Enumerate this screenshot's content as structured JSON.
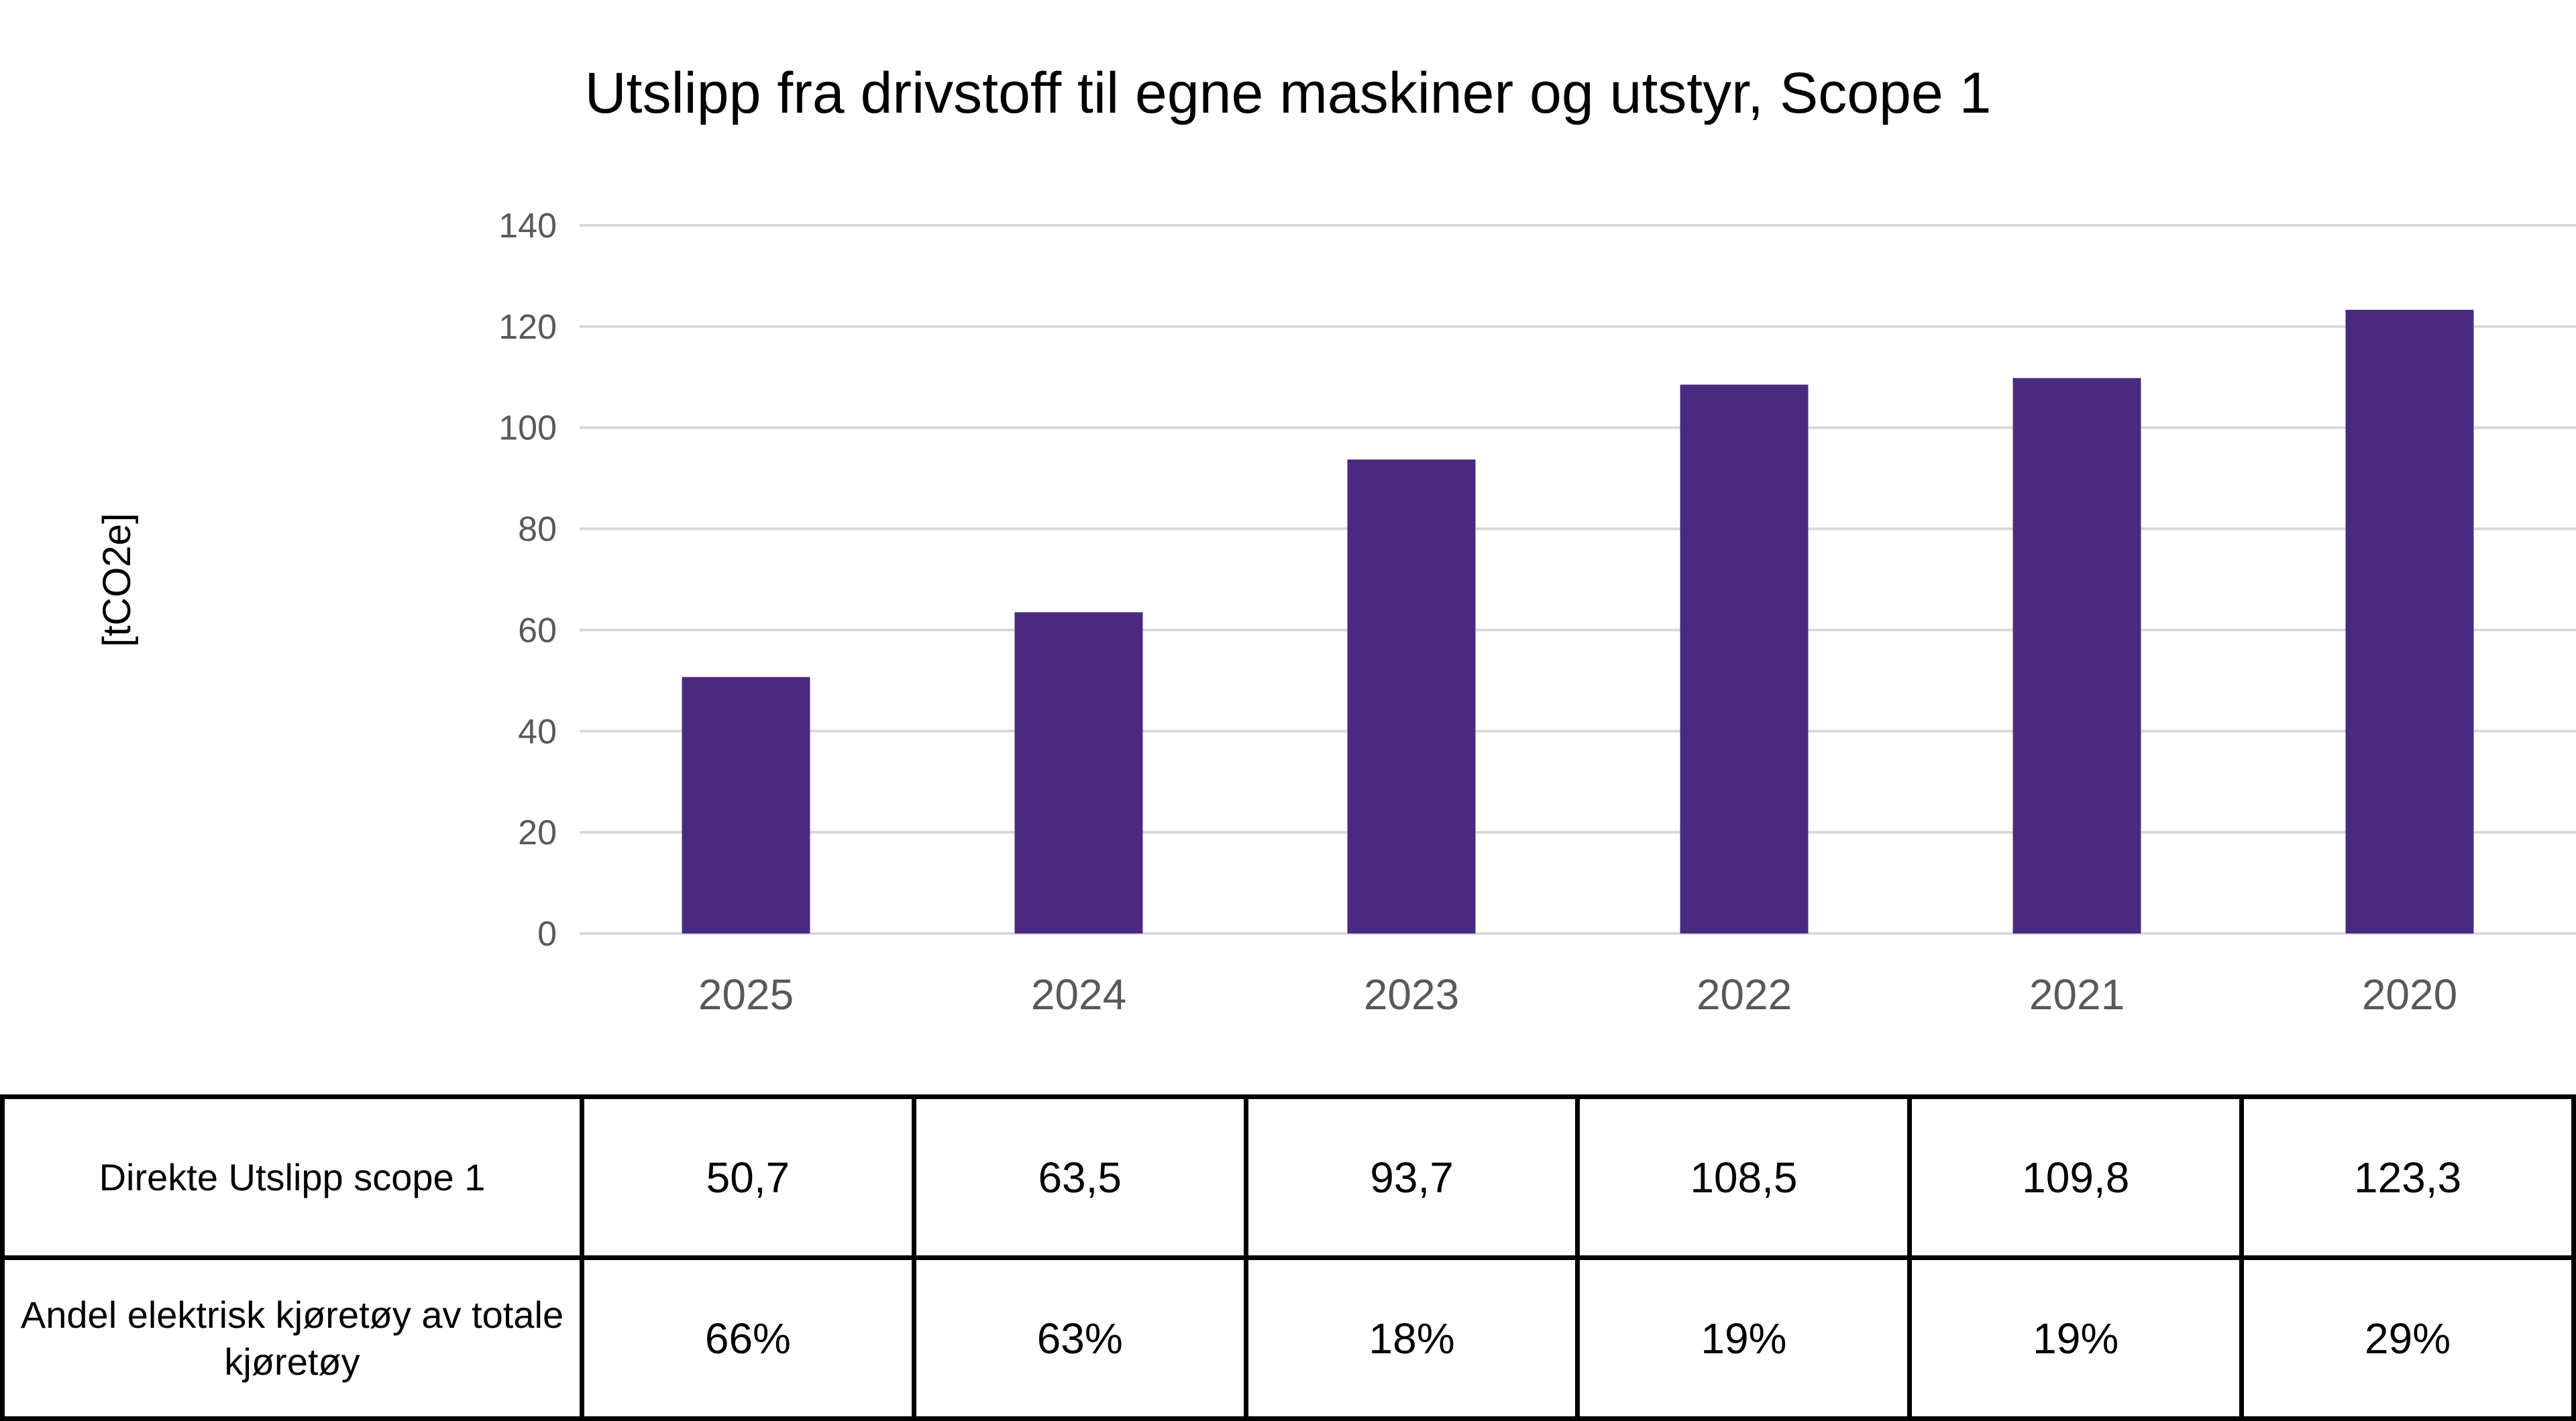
{
  "chart_data": {
    "type": "bar",
    "title": "Utslipp fra drivstoff til egne maskiner og utstyr, Scope 1",
    "ylabel": "[tCO2e]",
    "xlabel": "",
    "categories": [
      "2025",
      "2024",
      "2023",
      "2022",
      "2021",
      "2020"
    ],
    "values": [
      50.7,
      63.5,
      93.7,
      108.5,
      109.8,
      123.3
    ],
    "ylim": [
      0,
      140
    ],
    "yticks": [
      "0",
      "20",
      "40",
      "60",
      "80",
      "100",
      "120",
      "140"
    ],
    "grid": true,
    "legend": "none",
    "bar_color": "#4a2a7e"
  },
  "table": {
    "rows": [
      {
        "label": "Direkte Utslipp scope 1",
        "cells": [
          "50,7",
          "63,5",
          "93,7",
          "108,5",
          "109,8",
          "123,3"
        ]
      },
      {
        "label": "Andel elektrisk kjøretøy av totale kjøretøy",
        "cells": [
          "66%",
          "63%",
          "18%",
          "19%",
          "19%",
          "29%"
        ]
      }
    ]
  }
}
